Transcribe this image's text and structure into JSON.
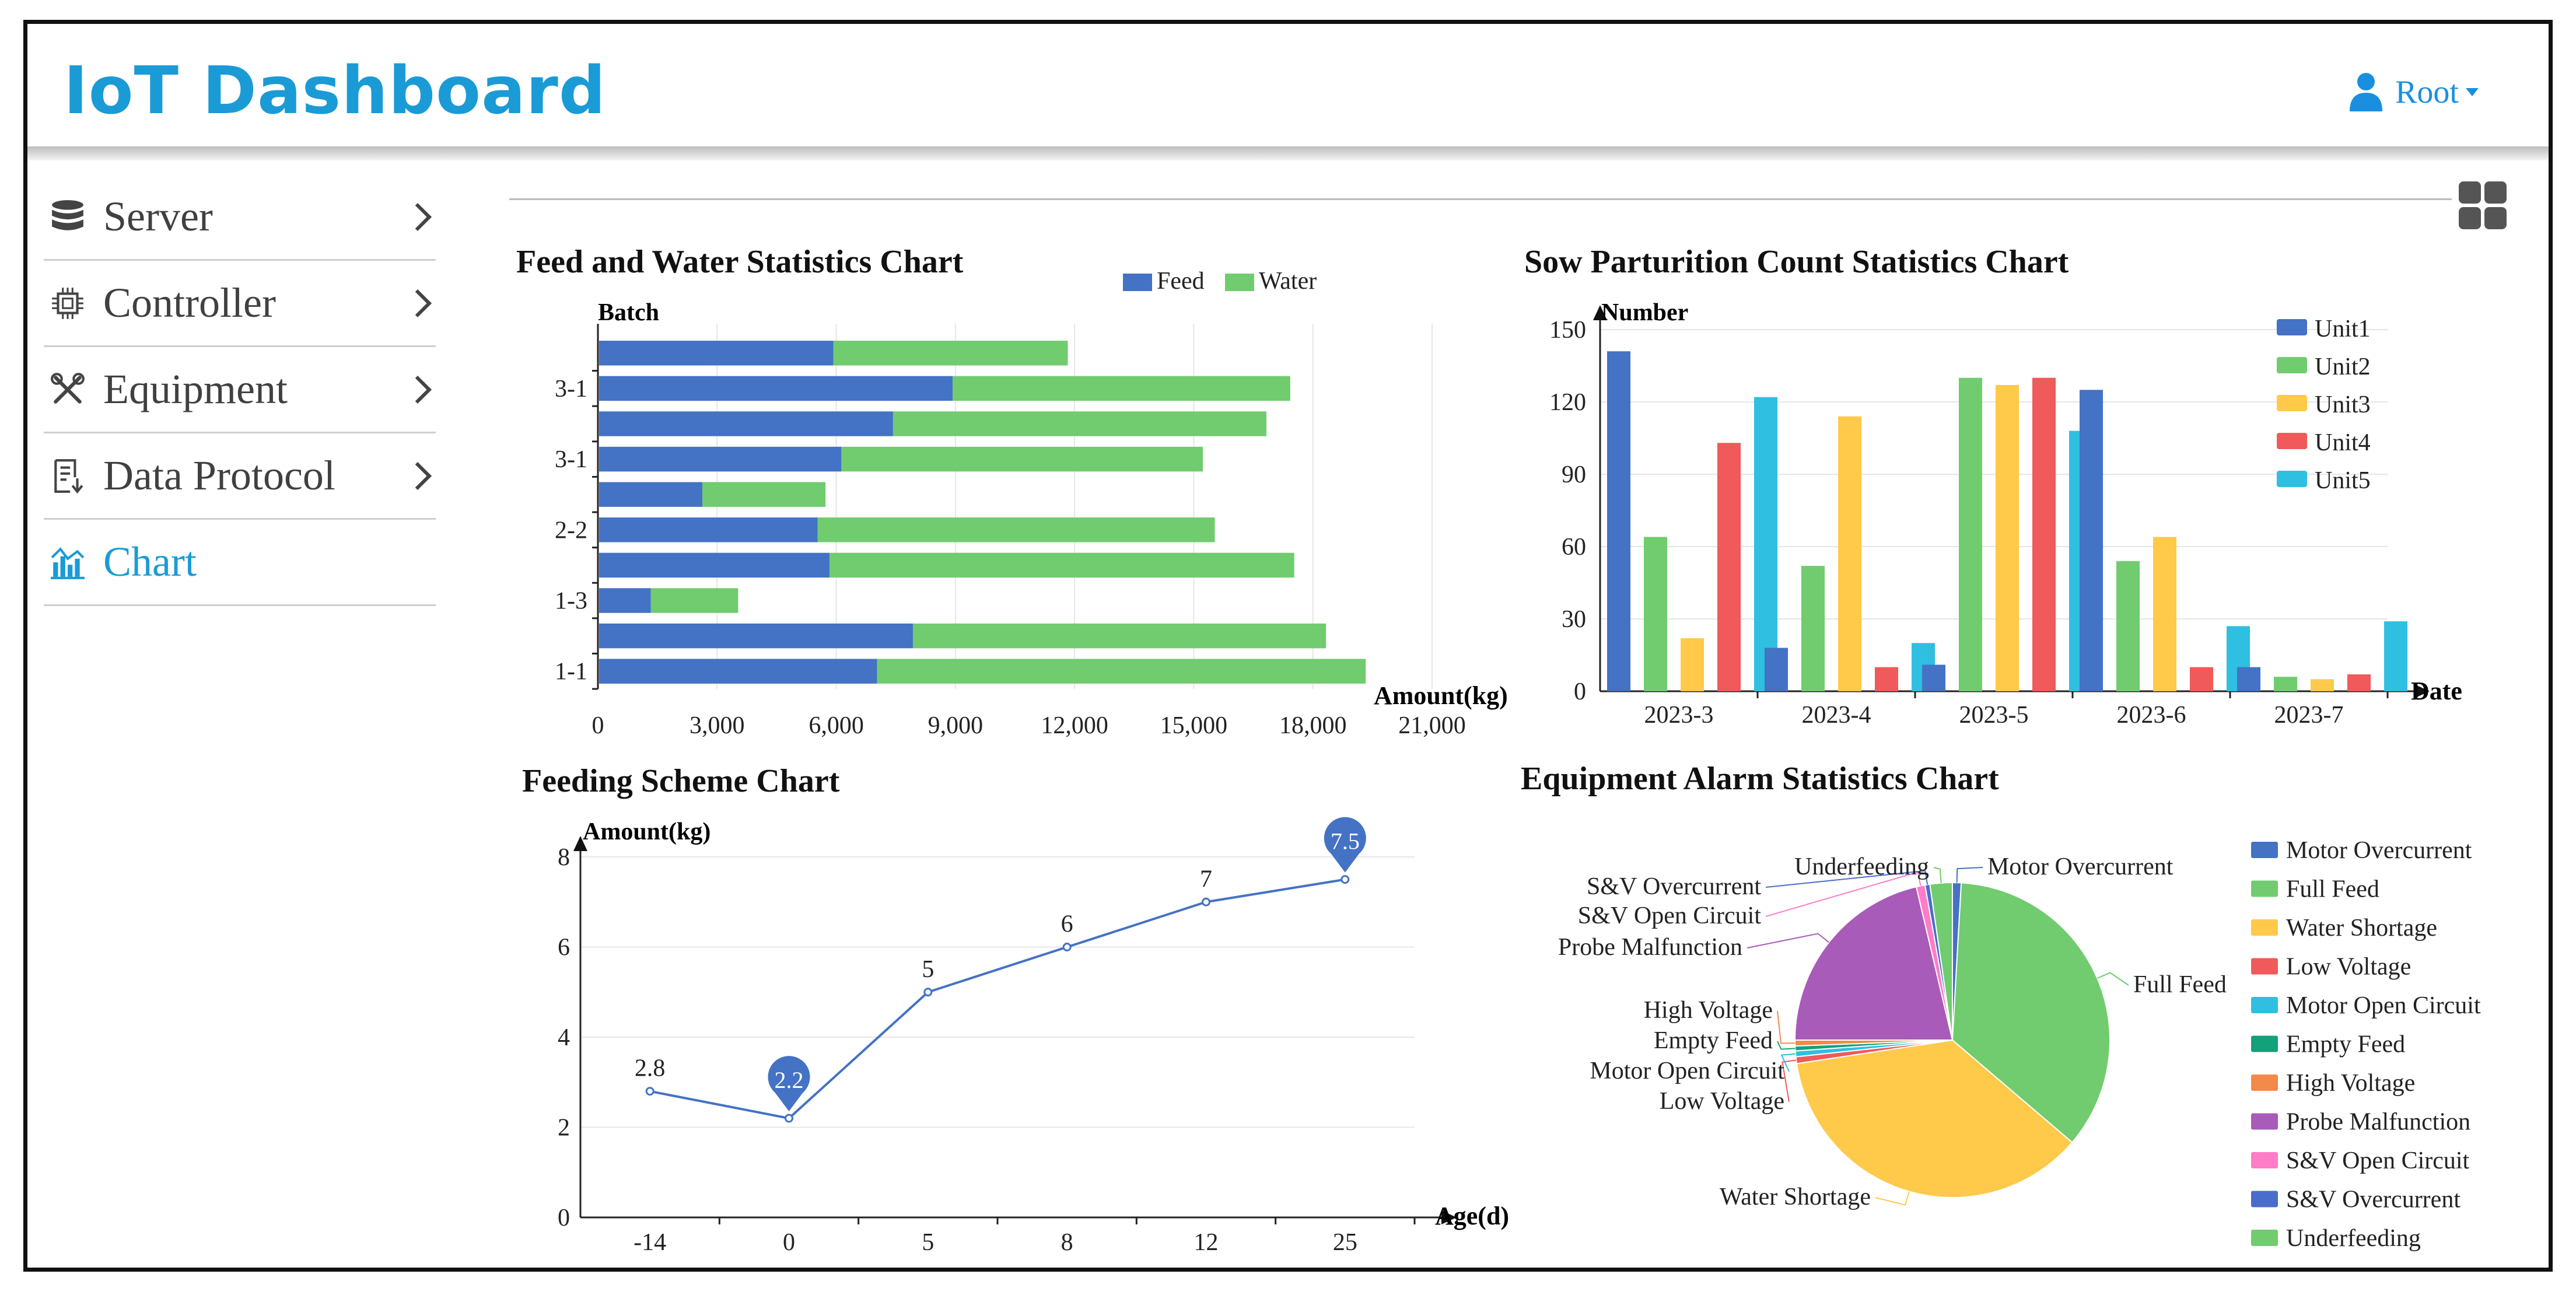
{
  "header": {
    "title": "IoT Dashboard",
    "user_label": "Root"
  },
  "sidebar": {
    "items": [
      {
        "label": "Server",
        "icon": "database-icon"
      },
      {
        "label": "Controller",
        "icon": "chip-icon"
      },
      {
        "label": "Equipment",
        "icon": "tools-icon"
      },
      {
        "label": "Data Protocol",
        "icon": "document-icon"
      },
      {
        "label": "Chart",
        "icon": "chart-icon"
      }
    ]
  },
  "colors": {
    "accent": "#1a9bd6",
    "blue": "#4472c4",
    "green": "#70cc6e",
    "yellow": "#ffc94a",
    "red": "#f05a5a",
    "cyan": "#2fbfe0"
  },
  "charts": [
    {
      "title": "Feed and Water Statistics Chart",
      "chart_data": {
        "type": "bar",
        "orientation": "horizontal",
        "stacked": true,
        "ylabel": "Batch",
        "xlabel": "Amount(kg)",
        "xlim": [
          0,
          21000
        ],
        "xticks": [
          "0",
          "3,000",
          "6,000",
          "9,000",
          "12,000",
          "15,000",
          "18,000",
          "21,000"
        ],
        "categories": [
          "1-1",
          "",
          "1-3",
          "",
          "2-2",
          "",
          "3-1",
          "",
          "3-1",
          ""
        ],
        "series": [
          {
            "name": "Feed",
            "values": [
              7000,
              7900,
              1300,
              5800,
              5500,
              2600,
              6100,
              7400,
              8900,
              5900
            ]
          },
          {
            "name": "Water",
            "values": [
              12300,
              10400,
              2200,
              11700,
              10000,
              3100,
              9100,
              9400,
              8500,
              5900
            ]
          }
        ]
      }
    },
    {
      "title": "Sow Parturition Count Statistics Chart",
      "chart_data": {
        "type": "bar",
        "ylabel": "Number",
        "xlabel": "Date",
        "ylim": [
          0,
          150
        ],
        "yticks": [
          "0",
          "30",
          "60",
          "90",
          "120",
          "150"
        ],
        "categories": [
          "2023-3",
          "2023-4",
          "2023-5",
          "2023-6",
          "2023-7"
        ],
        "series": [
          {
            "name": "Unit1",
            "values": [
              141,
              18,
              11,
              125,
              10
            ]
          },
          {
            "name": "Unit2",
            "values": [
              64,
              52,
              130,
              54,
              6
            ]
          },
          {
            "name": "Unit3",
            "values": [
              22,
              114,
              127,
              64,
              5
            ]
          },
          {
            "name": "Unit4",
            "values": [
              103,
              10,
              130,
              10,
              7
            ]
          },
          {
            "name": "Unit5",
            "values": [
              122,
              20,
              108,
              27,
              29
            ]
          }
        ]
      }
    },
    {
      "title": "Feeding Scheme Chart",
      "chart_data": {
        "type": "line",
        "ylabel": "Amount(kg)",
        "xlabel": "Age(d)",
        "ylim": [
          0,
          8
        ],
        "yticks": [
          "0",
          "2",
          "4",
          "6",
          "8"
        ],
        "categories": [
          "-14",
          "0",
          "5",
          "8",
          "12",
          "25"
        ],
        "values": [
          2.8,
          2.2,
          5,
          6,
          7,
          7.5
        ],
        "labels": [
          "2.8",
          "2.2",
          "5",
          "6",
          "7",
          "7.5"
        ],
        "markers": [
          {
            "index": 1,
            "label": "2.2",
            "kind": "min"
          },
          {
            "index": 5,
            "label": "7.5",
            "kind": "max"
          }
        ]
      }
    },
    {
      "title": "Equipment Alarm Statistics Chart",
      "chart_data": {
        "type": "pie",
        "slices": [
          {
            "name": "Motor Overcurrent",
            "value": 0.9
          },
          {
            "name": "Full Feed",
            "value": 35.5
          },
          {
            "name": "Water Shortage",
            "value": 36.5
          },
          {
            "name": "Low Voltage",
            "value": 0.7
          },
          {
            "name": "Motor Open Circuit",
            "value": 0.6
          },
          {
            "name": "Empty Feed",
            "value": 0.5
          },
          {
            "name": "High Voltage",
            "value": 0.6
          },
          {
            "name": "Probe Malfunction",
            "value": 21.4
          },
          {
            "name": "S&V Open Circuit",
            "value": 0.9
          },
          {
            "name": "S&V Overcurrent",
            "value": 0.5
          },
          {
            "name": "Underfeeding",
            "value": 2.3
          }
        ]
      }
    }
  ]
}
